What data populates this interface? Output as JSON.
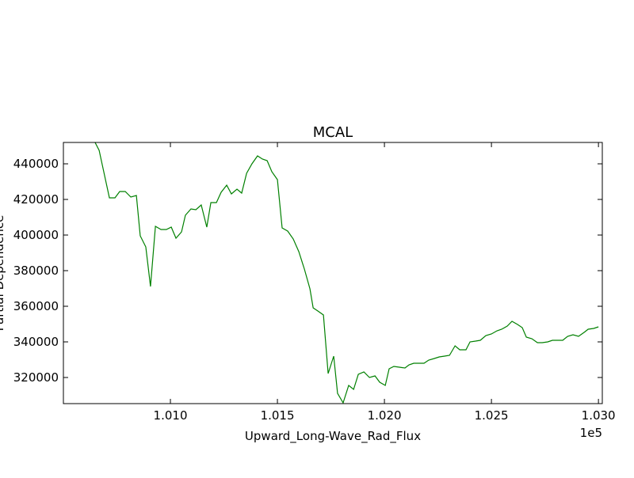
{
  "chart_data": {
    "type": "line",
    "title": "MCAL",
    "xlabel": "Upward_Long-Wave_Rad_Flux",
    "ylabel": "Partial Dependence",
    "x_offset_label": "1e5",
    "x": [
      100648,
      100667,
      100715,
      100741,
      100763,
      100789,
      100815,
      100841,
      100859,
      100885,
      100907,
      100930,
      100956,
      100981,
      101004,
      101026,
      101052,
      101070,
      101096,
      101119,
      101144,
      101170,
      101189,
      101215,
      101237,
      101263,
      101285,
      101311,
      101333,
      101356,
      101381,
      101407,
      101430,
      101452,
      101474,
      101500,
      101522,
      101548,
      101574,
      101600,
      101626,
      101652,
      101667,
      101689,
      101715,
      101737,
      101763,
      101781,
      101807,
      101833,
      101856,
      101878,
      101904,
      101930,
      101956,
      101978,
      102004,
      102022,
      102044,
      102070,
      102096,
      102115,
      102137,
      102159,
      102185,
      102207,
      102233,
      102256,
      102281,
      102304,
      102330,
      102352,
      102381,
      102400,
      102426,
      102448,
      102474,
      102500,
      102526,
      102548,
      102574,
      102596,
      102622,
      102644,
      102663,
      102689,
      102715,
      102737,
      102763,
      102785,
      102811,
      102833,
      102856,
      102881,
      102907,
      102933,
      102952,
      102978,
      103000
    ],
    "series": [
      {
        "name": "MCAL",
        "color": "#008000",
        "values": [
          452000,
          447556,
          420889,
          420889,
          424444,
          424444,
          421333,
          422222,
          399556,
          393333,
          371111,
          404889,
          403111,
          403111,
          404444,
          398222,
          401778,
          411111,
          414667,
          414222,
          416889,
          404444,
          418222,
          418222,
          424000,
          428000,
          423111,
          425778,
          423556,
          434667,
          440000,
          444444,
          442667,
          441778,
          435556,
          431111,
          404000,
          402222,
          397778,
          390667,
          380889,
          369778,
          359111,
          357333,
          355111,
          322222,
          332000,
          311111,
          305778,
          315556,
          313333,
          321778,
          323111,
          320000,
          320889,
          317333,
          315556,
          324889,
          326222,
          325778,
          325333,
          327111,
          328000,
          328000,
          328000,
          329778,
          330667,
          331556,
          332000,
          332444,
          337778,
          335556,
          335556,
          340000,
          340444,
          340889,
          343556,
          344444,
          346222,
          347111,
          348889,
          351556,
          349778,
          348000,
          342667,
          341778,
          339556,
          339556,
          340000,
          340889,
          340889,
          340889,
          343111,
          344000,
          343111,
          345333,
          347111,
          347556,
          348444
        ]
      }
    ],
    "xlim": [
      100500,
      103018
    ],
    "xticks": [
      {
        "value": 101000,
        "label": "1.010"
      },
      {
        "value": 101500,
        "label": "1.015"
      },
      {
        "value": 102000,
        "label": "1.020"
      },
      {
        "value": 102500,
        "label": "1.025"
      },
      {
        "value": 103000,
        "label": "1.030"
      }
    ],
    "ylim": [
      305333,
      452000
    ],
    "yticks": [
      320000,
      340000,
      360000,
      380000,
      400000,
      420000,
      440000
    ]
  }
}
